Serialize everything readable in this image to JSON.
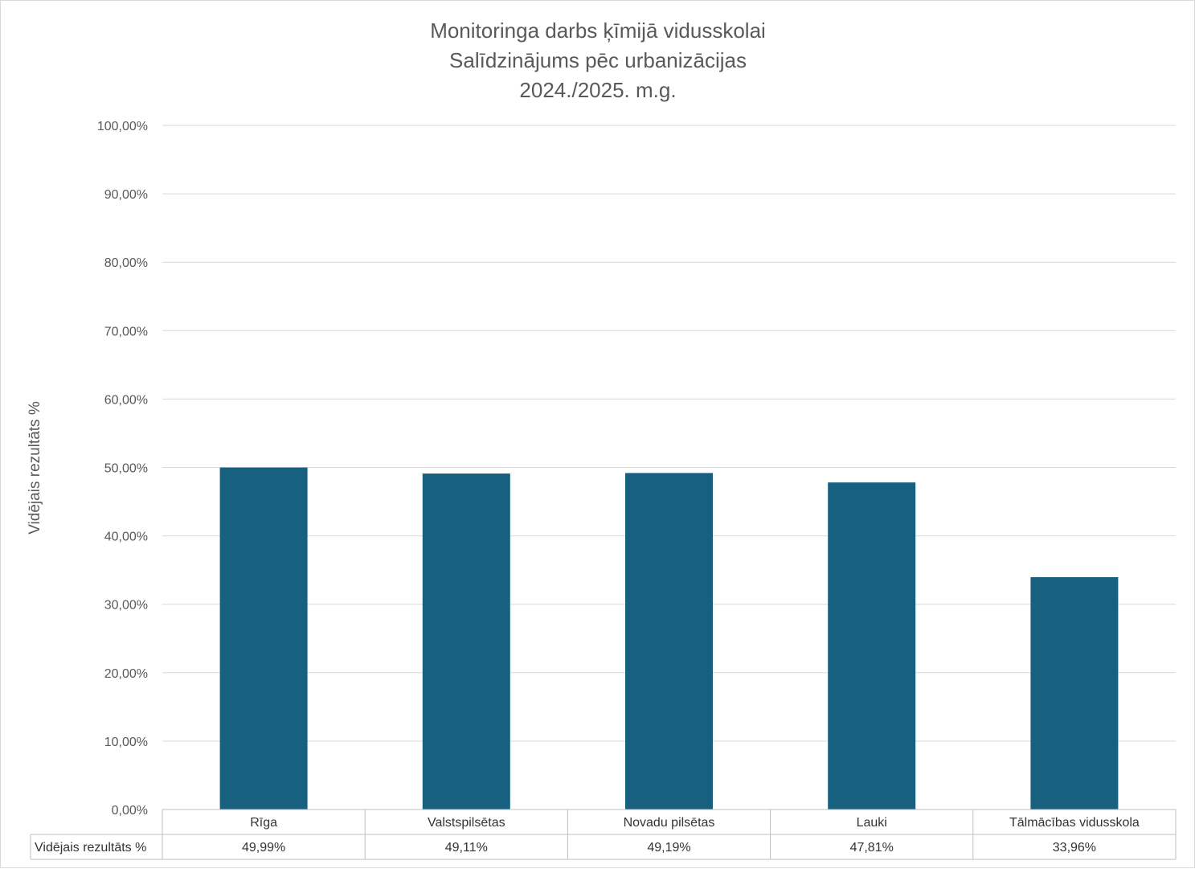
{
  "chart_data": {
    "type": "bar",
    "title": [
      "Monitoringa darbs ķīmijā vidusskolai",
      "Salīdzinājums pēc urbanizācijas",
      "2024./2025. m.g."
    ],
    "ylabel": "Vidējais rezultāts %",
    "ylim": [
      0,
      100
    ],
    "yticks": [
      "0,00%",
      "10,00%",
      "20,00%",
      "30,00%",
      "40,00%",
      "50,00%",
      "60,00%",
      "70,00%",
      "80,00%",
      "90,00%",
      "100,00%"
    ],
    "categories": [
      "Rīga",
      "Valstspilsētas",
      "Novadu pilsētas",
      "Lauki",
      "Tālmācības vidusskola"
    ],
    "series": [
      {
        "name": "Vidējais rezultāts %",
        "values": [
          49.99,
          49.11,
          49.19,
          47.81,
          33.96
        ],
        "labels": [
          "49,99%",
          "49,11%",
          "49,19%",
          "47,81%",
          "33,96%"
        ],
        "color": "#17607f"
      }
    ],
    "grid": true,
    "legend": "data-table"
  }
}
